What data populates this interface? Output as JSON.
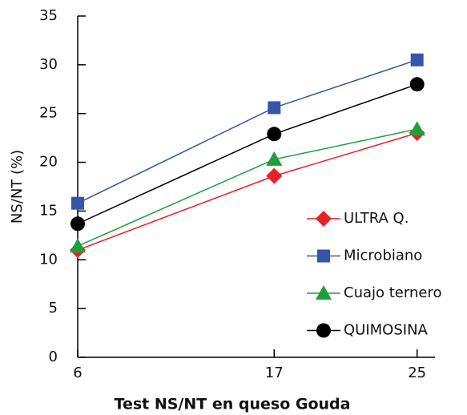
{
  "chart_data": {
    "type": "line",
    "x_label": "Test NS/NT en queso Gouda",
    "y_label": "NS/NT (%)",
    "x": [
      6,
      17,
      25
    ],
    "xlim": [
      6,
      26
    ],
    "xticks": [
      6,
      17,
      25
    ],
    "ylim": [
      0,
      35
    ],
    "yticks": [
      0,
      5,
      10,
      15,
      20,
      25,
      30,
      35
    ],
    "legend": "lower right",
    "series": [
      {
        "name": "ULTRA Q.",
        "color": "#e8202a",
        "marker": "diamond",
        "values": [
          11,
          18.6,
          23.0
        ]
      },
      {
        "name": "Microbiano",
        "color": "#3556a8",
        "marker": "square",
        "values": [
          15.8,
          25.6,
          30.5
        ]
      },
      {
        "name": "Cuajo ternero",
        "color": "#1f9e3a",
        "marker": "triangle",
        "values": [
          11.4,
          20.3,
          23.4
        ]
      },
      {
        "name": "QUIMOSINA",
        "color": "#000000",
        "marker": "circle",
        "values": [
          13.7,
          22.9,
          28.0
        ]
      }
    ]
  }
}
